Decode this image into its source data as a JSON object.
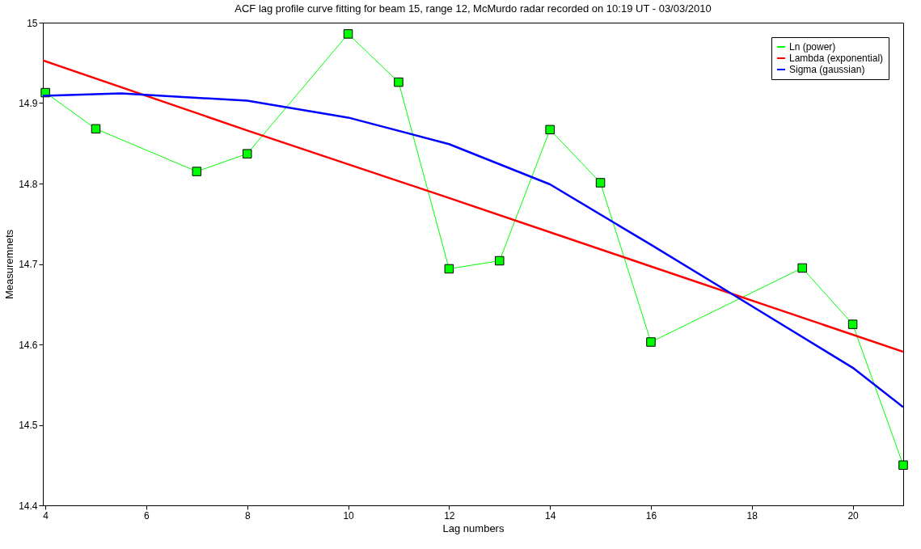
{
  "chart_data": {
    "type": "line",
    "title": "ACF lag profile curve fitting for beam 15, range 12, McMurdo radar recorded on 10:19 UT - 03/03/2010",
    "xlabel": "Lag numbers",
    "ylabel": "Measuremnets",
    "xlim": [
      3.95,
      21
    ],
    "xticks": [
      4,
      6,
      8,
      10,
      12,
      14,
      16,
      18,
      20
    ],
    "ylim": [
      14.4,
      15
    ],
    "yticks": [
      14.4,
      14.5,
      14.6,
      14.7,
      14.8,
      14.9,
      15
    ],
    "grid": false,
    "legend": "top right",
    "series": [
      {
        "name": "Ln (power)",
        "color": "#00ff00",
        "marker": "square",
        "x": [
          4,
          5,
          7,
          8,
          10,
          11,
          12,
          13,
          14,
          15,
          16,
          19,
          20,
          21
        ],
        "values": [
          14.913,
          14.868,
          14.815,
          14.837,
          14.986,
          14.926,
          14.694,
          14.704,
          14.867,
          14.801,
          14.603,
          14.695,
          14.625,
          14.45
        ]
      },
      {
        "name": "Lambda (exponential)",
        "color": "#ff0000",
        "marker": "none",
        "x": [
          3.95,
          8,
          12,
          16,
          21
        ],
        "values": [
          14.953,
          14.866,
          14.782,
          14.697,
          14.591
        ]
      },
      {
        "name": "Sigma (gaussian)",
        "color": "#0000ff",
        "marker": "none",
        "x": [
          3.95,
          5.5,
          8,
          10,
          12,
          14,
          16,
          17.65,
          20,
          21
        ],
        "values": [
          14.909,
          14.912,
          14.903,
          14.882,
          14.849,
          14.799,
          14.724,
          14.661,
          14.571,
          14.522
        ]
      }
    ]
  }
}
